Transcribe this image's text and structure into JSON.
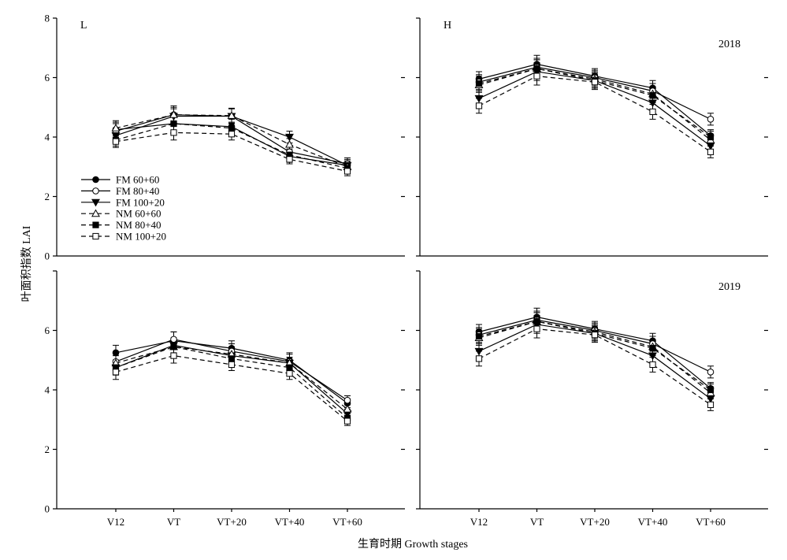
{
  "figure": {
    "ylabel": "叶面积指数 LAI",
    "xlabel": "生育时期 Growth stages",
    "colors": {
      "ink": "#000000",
      "background": "#ffffff"
    }
  },
  "chart_data": [
    {
      "type": "line",
      "panel_label": "L",
      "categories": [
        "V12",
        "VT",
        "VT+20",
        "VT+40",
        "VT+60"
      ],
      "ylim": [
        0,
        8
      ],
      "yticks": [
        0,
        2,
        4,
        6,
        8
      ],
      "ytick_labels": [
        "0",
        "2",
        "4",
        "6",
        "8"
      ],
      "show_xtick_labels": false,
      "grid": false,
      "legend": "lower-left",
      "series": [
        {
          "name": "FM 60+60",
          "values": [
            4.25,
            4.45,
            4.35,
            3.35,
            3.05
          ],
          "err": [
            0.25,
            0.25,
            0.25,
            0.2,
            0.2
          ]
        },
        {
          "name": "FM 80+40",
          "values": [
            4.2,
            4.75,
            4.7,
            3.5,
            3.1
          ],
          "err": [
            0.25,
            0.3,
            0.25,
            0.2,
            0.2
          ]
        },
        {
          "name": "FM 100+20",
          "values": [
            4.05,
            4.7,
            4.7,
            4.0,
            3.05
          ],
          "err": [
            0.25,
            0.25,
            0.25,
            0.2,
            0.15
          ]
        },
        {
          "name": "NM 60+60",
          "values": [
            4.3,
            4.75,
            4.72,
            3.75,
            3.0
          ],
          "err": [
            0.25,
            0.25,
            0.25,
            0.2,
            0.15
          ]
        },
        {
          "name": "NM 80+40",
          "values": [
            3.9,
            4.45,
            4.3,
            3.4,
            2.95
          ],
          "err": [
            0.2,
            0.25,
            0.2,
            0.2,
            0.15
          ]
        },
        {
          "name": "NM 100+20",
          "values": [
            3.85,
            4.15,
            4.1,
            3.25,
            2.85
          ],
          "err": [
            0.2,
            0.25,
            0.2,
            0.15,
            0.15
          ]
        }
      ]
    },
    {
      "type": "line",
      "panel_label": "H",
      "year": "2018",
      "categories": [
        "V12",
        "VT",
        "VT+20",
        "VT+40",
        "VT+60"
      ],
      "ylim": [
        0,
        8
      ],
      "yticks": [
        0,
        2,
        4,
        6,
        8
      ],
      "ytick_labels": [],
      "show_xtick_labels": false,
      "grid": false,
      "series": [
        {
          "name": "FM 60+60",
          "values": [
            5.95,
            6.45,
            6.05,
            5.65,
            4.05
          ],
          "err": [
            0.25,
            0.3,
            0.25,
            0.25,
            0.2
          ]
        },
        {
          "name": "FM 80+40",
          "values": [
            5.85,
            6.35,
            6.0,
            5.55,
            4.6
          ],
          "err": [
            0.25,
            0.3,
            0.25,
            0.25,
            0.2
          ]
        },
        {
          "name": "FM 100+20",
          "values": [
            5.3,
            6.2,
            5.9,
            5.15,
            3.7
          ],
          "err": [
            0.3,
            0.3,
            0.25,
            0.3,
            0.2
          ]
        },
        {
          "name": "NM 60+60",
          "values": [
            5.75,
            6.3,
            5.95,
            5.45,
            3.9
          ],
          "err": [
            0.25,
            0.3,
            0.25,
            0.25,
            0.2
          ]
        },
        {
          "name": "NM 80+40",
          "values": [
            5.8,
            6.3,
            5.9,
            5.4,
            4.0
          ],
          "err": [
            0.25,
            0.3,
            0.25,
            0.25,
            0.2
          ]
        },
        {
          "name": "NM 100+20",
          "values": [
            5.05,
            6.05,
            5.85,
            4.85,
            3.5
          ],
          "err": [
            0.25,
            0.3,
            0.25,
            0.25,
            0.2
          ]
        }
      ]
    },
    {
      "type": "line",
      "categories": [
        "V12",
        "VT",
        "VT+20",
        "VT+40",
        "VT+60"
      ],
      "ylim": [
        0,
        8
      ],
      "yticks": [
        0,
        2,
        4,
        6,
        8
      ],
      "ytick_labels": [
        "0",
        "2",
        "4",
        "6"
      ],
      "show_xtick_labels": true,
      "grid": false,
      "series": [
        {
          "name": "FM 60+60",
          "values": [
            5.25,
            5.65,
            5.4,
            5.0,
            3.55
          ],
          "err": [
            0.25,
            0.3,
            0.25,
            0.25,
            0.15
          ]
        },
        {
          "name": "FM 80+40",
          "values": [
            4.95,
            5.7,
            5.3,
            4.95,
            3.65
          ],
          "err": [
            0.25,
            0.25,
            0.25,
            0.25,
            0.15
          ]
        },
        {
          "name": "FM 100+20",
          "values": [
            4.75,
            5.5,
            5.15,
            4.9,
            3.2
          ],
          "err": [
            0.25,
            0.25,
            0.25,
            0.2,
            0.15
          ]
        },
        {
          "name": "NM 60+60",
          "values": [
            4.9,
            5.45,
            5.2,
            4.9,
            3.35
          ],
          "err": [
            0.25,
            0.25,
            0.25,
            0.2,
            0.15
          ]
        },
        {
          "name": "NM 80+40",
          "values": [
            4.75,
            5.45,
            5.05,
            4.75,
            3.05
          ],
          "err": [
            0.25,
            0.25,
            0.2,
            0.2,
            0.15
          ]
        },
        {
          "name": "NM 100+20",
          "values": [
            4.6,
            5.15,
            4.85,
            4.55,
            2.95
          ],
          "err": [
            0.25,
            0.25,
            0.2,
            0.2,
            0.15
          ]
        }
      ]
    },
    {
      "type": "line",
      "year": "2019",
      "categories": [
        "V12",
        "VT",
        "VT+20",
        "VT+40",
        "VT+60"
      ],
      "ylim": [
        0,
        8
      ],
      "yticks": [
        0,
        2,
        4,
        6,
        8
      ],
      "ytick_labels": [],
      "show_xtick_labels": true,
      "grid": false,
      "series": [
        {
          "name": "FM 60+60",
          "values": [
            5.95,
            6.45,
            6.05,
            5.65,
            4.05
          ],
          "err": [
            0.25,
            0.3,
            0.25,
            0.25,
            0.2
          ]
        },
        {
          "name": "FM 80+40",
          "values": [
            5.85,
            6.35,
            6.0,
            5.55,
            4.6
          ],
          "err": [
            0.25,
            0.3,
            0.25,
            0.25,
            0.2
          ]
        },
        {
          "name": "FM 100+20",
          "values": [
            5.3,
            6.2,
            5.9,
            5.15,
            3.7
          ],
          "err": [
            0.3,
            0.3,
            0.25,
            0.3,
            0.2
          ]
        },
        {
          "name": "NM 60+60",
          "values": [
            5.75,
            6.3,
            5.95,
            5.45,
            3.9
          ],
          "err": [
            0.25,
            0.3,
            0.25,
            0.25,
            0.2
          ]
        },
        {
          "name": "NM 80+40",
          "values": [
            5.8,
            6.3,
            5.9,
            5.4,
            4.0
          ],
          "err": [
            0.25,
            0.3,
            0.25,
            0.25,
            0.2
          ]
        },
        {
          "name": "NM 100+20",
          "values": [
            5.05,
            6.05,
            5.85,
            4.85,
            3.5
          ],
          "err": [
            0.25,
            0.3,
            0.25,
            0.25,
            0.2
          ]
        }
      ]
    }
  ]
}
